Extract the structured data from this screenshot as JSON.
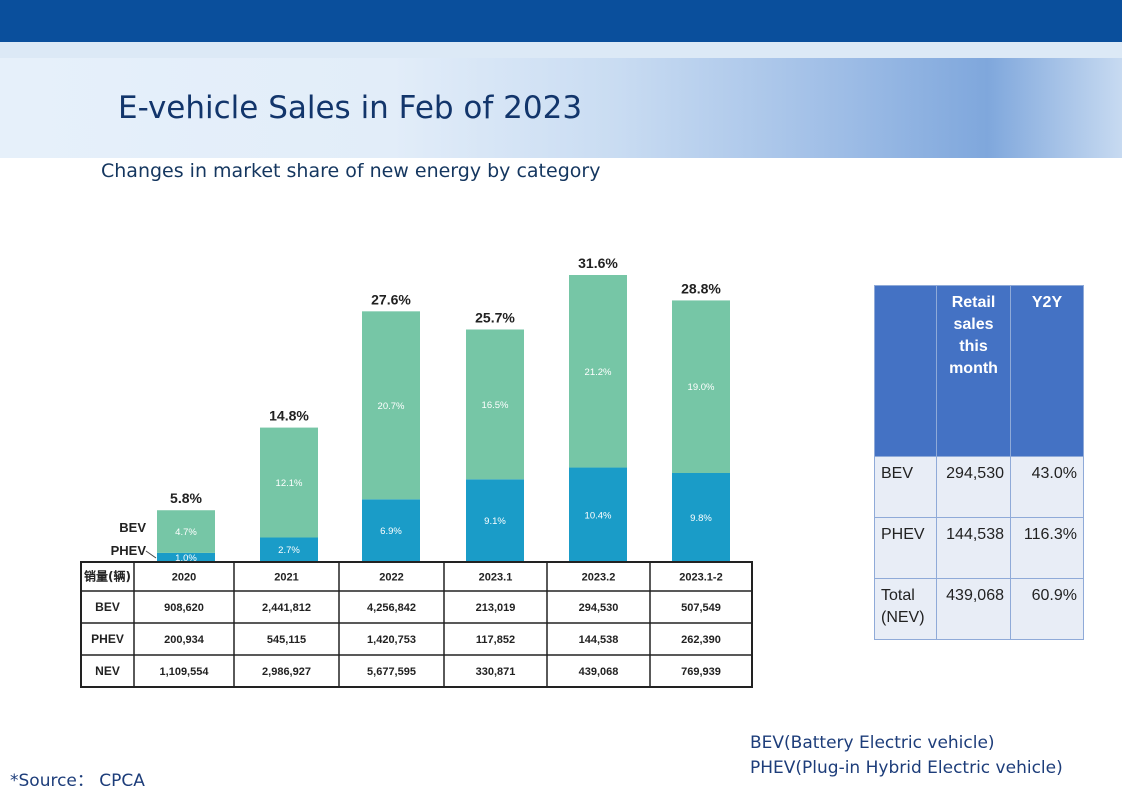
{
  "title": "E-vehicle Sales in Feb of 2023",
  "subtitle": "Changes in market share of new energy by category",
  "chart_data": {
    "type": "bar",
    "stacked": true,
    "categories": [
      "2020",
      "2021",
      "2022",
      "2023.1",
      "2023.2",
      "2023.1-2"
    ],
    "series": [
      {
        "name": "PHEV",
        "values": [
          1.0,
          2.7,
          6.9,
          9.1,
          10.4,
          9.8
        ],
        "labels": [
          "1.0%",
          "2.7%",
          "6.9%",
          "9.1%",
          "10.4%",
          "9.8%"
        ],
        "color": "#1a9cc8"
      },
      {
        "name": "BEV",
        "values": [
          4.7,
          12.1,
          20.7,
          16.5,
          21.2,
          19.0
        ],
        "labels": [
          "4.7%",
          "12.1%",
          "20.7%",
          "16.5%",
          "21.2%",
          "19.0%"
        ],
        "color": "#76c6a6"
      }
    ],
    "totals": [
      "5.8%",
      "14.8%",
      "27.6%",
      "25.7%",
      "31.6%",
      "28.8%"
    ],
    "ylim": [
      0,
      31.6
    ],
    "legend": [
      "BEV",
      "PHEV"
    ],
    "table": {
      "header": "销量(辆)",
      "rows": [
        {
          "label": "BEV",
          "values": [
            "908,620",
            "2,441,812",
            "4,256,842",
            "213,019",
            "294,530",
            "507,549"
          ]
        },
        {
          "label": "PHEV",
          "values": [
            "200,934",
            "545,115",
            "1,420,753",
            "117,852",
            "144,538",
            "262,390"
          ]
        },
        {
          "label": "NEV",
          "values": [
            "1,109,554",
            "2,986,927",
            "5,677,595",
            "330,871",
            "439,068",
            "769,939"
          ]
        }
      ]
    }
  },
  "retail_table": {
    "headers": [
      "",
      "Retail sales this month",
      "Y2Y"
    ],
    "rows": [
      {
        "label": "BEV",
        "sales": "294,530",
        "y2y": "43.0%"
      },
      {
        "label": "PHEV",
        "sales": "144,538",
        "y2y": "116.3%"
      },
      {
        "label": "Total(NEV)",
        "sales": "439,068",
        "y2y": "60.9%"
      }
    ]
  },
  "notes": {
    "bev": "BEV(Battery Electric vehicle)",
    "phev": "PHEV(Plug-in Hybrid Electric vehicle)"
  },
  "source": "*Source： CPCA"
}
